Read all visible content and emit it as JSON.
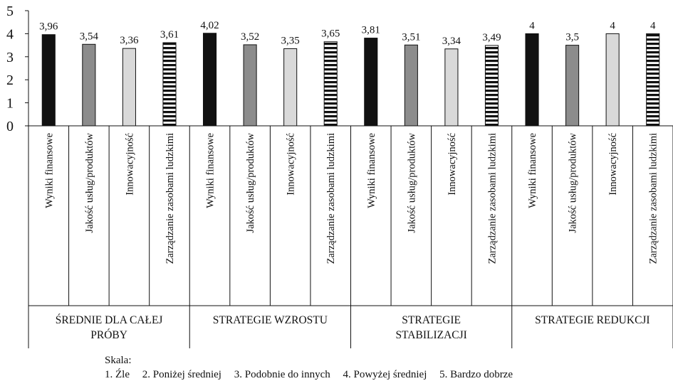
{
  "chart_data": {
    "type": "bar",
    "ylim": [
      0,
      5
    ],
    "yticks": [
      0,
      1,
      2,
      3,
      4,
      5
    ],
    "grid": false,
    "series_styles": [
      {
        "category": "Wyniki finansowe",
        "fill": "#111111",
        "pattern": "solid"
      },
      {
        "category": "Jakość usług/produktów",
        "fill": "#8c8c8c",
        "pattern": "solid"
      },
      {
        "category": "Innowacyjność",
        "fill": "#d9d9d9",
        "pattern": "solid"
      },
      {
        "category": "Zarządzanie zasobami ludzkimi",
        "fill": "#111111",
        "pattern": "horizontal-stripes"
      }
    ],
    "groups": [
      {
        "label_lines": [
          "ŚREDNIE DLA CAŁEJ",
          "PRÓBY"
        ],
        "categories": [
          "Wyniki finansowe",
          "Jakość usług/produktów",
          "Innowacyjność",
          "Zarządzanie zasobami ludzkimi"
        ],
        "values": [
          3.96,
          3.54,
          3.36,
          3.61
        ],
        "value_labels": [
          "3,96",
          "3,54",
          "3,36",
          "3,61"
        ]
      },
      {
        "label_lines": [
          "STRATEGIE WZROSTU"
        ],
        "categories": [
          "Wyniki finansowe",
          "Jakość usług/produktów",
          "Innowacyjność",
          "Zarządzanie zasobami ludzkimi"
        ],
        "values": [
          4.02,
          3.52,
          3.35,
          3.65
        ],
        "value_labels": [
          "4,02",
          "3,52",
          "3,35",
          "3,65"
        ]
      },
      {
        "label_lines": [
          "STRATEGIE",
          "STABILIZACJI"
        ],
        "categories": [
          "Wyniki finansowe",
          "Jakość usług/produktów",
          "Innowacyjność",
          "Zarządzanie zasobami ludzkimi"
        ],
        "values": [
          3.81,
          3.51,
          3.34,
          3.49
        ],
        "value_labels": [
          "3,81",
          "3,51",
          "3,34",
          "3,49"
        ]
      },
      {
        "label_lines": [
          "STRATEGIE REDUKCJI"
        ],
        "categories": [
          "Wyniki finansowe",
          "Jakość usług/produktów",
          "Innowacyjność",
          "Zarządzanie zasobami ludzkimi"
        ],
        "values": [
          4,
          3.5,
          4,
          4
        ],
        "value_labels": [
          "4",
          "3,5",
          "4",
          "4"
        ]
      }
    ]
  },
  "legend": {
    "title": "Skala:",
    "items": [
      "1. Źle",
      "2. Poniżej średniej",
      "3. Podobnie do innych",
      "4. Powyżej średniej",
      "5. Bardzo dobrze"
    ]
  }
}
